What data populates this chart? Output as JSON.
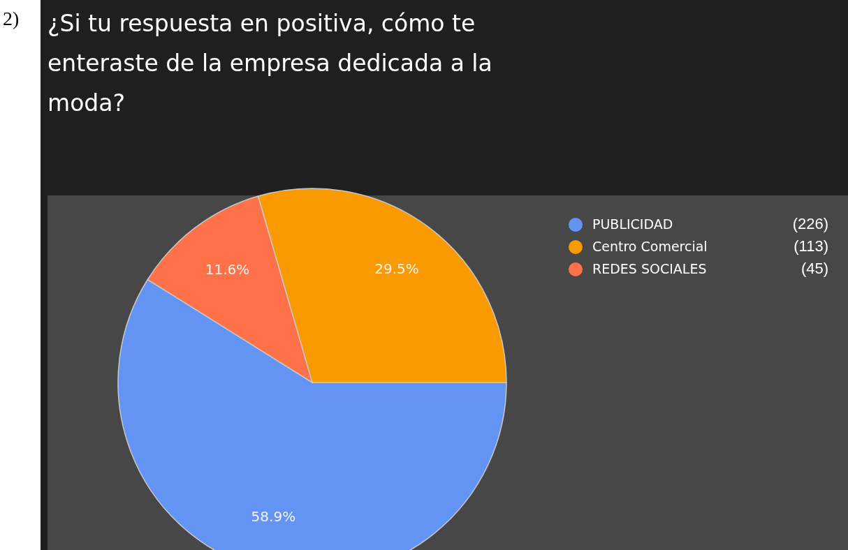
{
  "chart_data": {
    "type": "pie",
    "title": "¿Si tu respuesta en positiva, cómo te enteraste de la empresa dedicada a la moda?",
    "annotations": [
      "2)",
      "(226)",
      "(113)",
      "(45)"
    ],
    "categories": [
      "PUBLICIDAD",
      "Centro Comercial",
      "REDES SOCIALES"
    ],
    "values": [
      58.9,
      29.5,
      11.6
    ],
    "value_labels": [
      "58.9%",
      "29.5%",
      "11.6%"
    ],
    "colors": [
      "#6394f4",
      "#f99a00",
      "#ff7249"
    ],
    "legend": "top right"
  }
}
